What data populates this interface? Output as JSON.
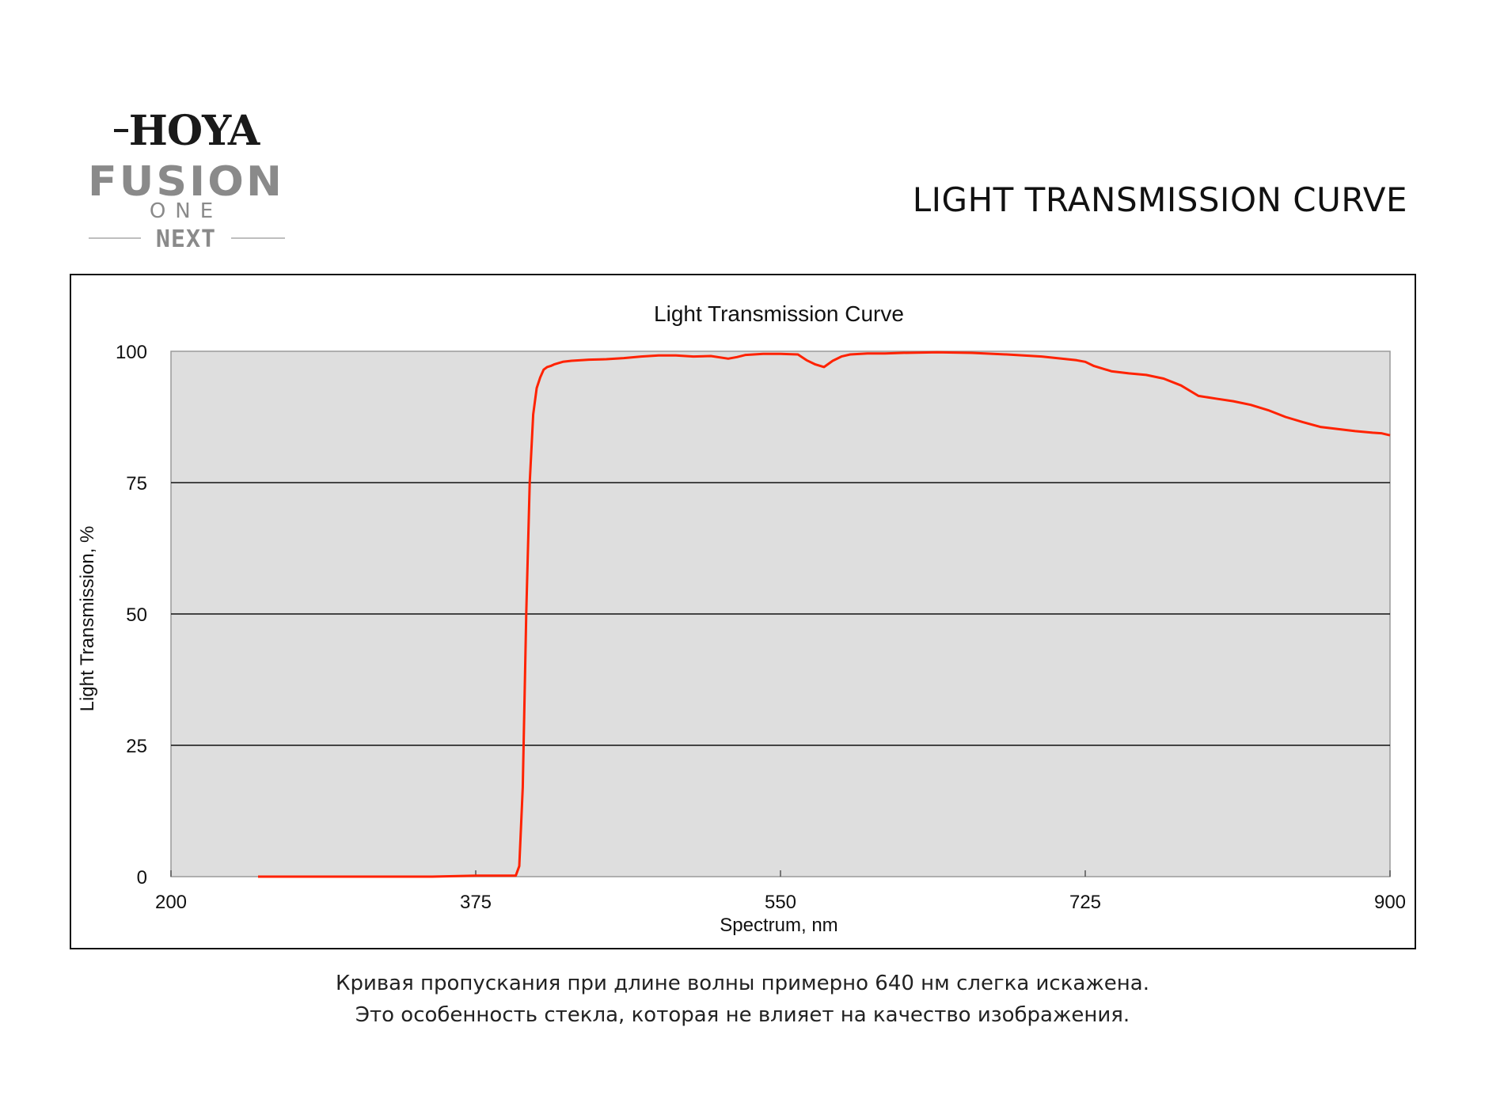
{
  "logo": {
    "brand": "HOYA",
    "product_line_1": "FUSION",
    "product_line_2": "ONE",
    "product_line_3": "NEXT"
  },
  "page_heading": "LIGHT TRANSMISSION CURVE",
  "chart_data": {
    "type": "line",
    "title": "Light Transmission Curve",
    "xlabel": "Spectrum, nm",
    "ylabel": "Light Transmission, %",
    "xlim": [
      200,
      900
    ],
    "ylim": [
      0,
      100
    ],
    "x_ticks": [
      200,
      375,
      550,
      725,
      900
    ],
    "y_ticks": [
      0,
      25,
      50,
      75,
      100
    ],
    "grid": "horizontal",
    "legend": "none",
    "plot_background": "#dedede",
    "series": [
      {
        "color": "#ff2200",
        "x": [
          250,
          300,
          350,
          375,
          398,
          400,
          402,
          404,
          406,
          408,
          410,
          412,
          414,
          416,
          418,
          420,
          425,
          430,
          440,
          450,
          460,
          470,
          480,
          490,
          500,
          510,
          520,
          525,
          530,
          540,
          550,
          560,
          565,
          570,
          575,
          580,
          585,
          590,
          600,
          610,
          620,
          640,
          660,
          680,
          700,
          720,
          725,
          730,
          740,
          750,
          760,
          770,
          780,
          790,
          800,
          810,
          820,
          830,
          840,
          850,
          860,
          870,
          880,
          890,
          895,
          900
        ],
        "y": [
          0,
          0,
          0,
          0.2,
          0.2,
          2,
          17,
          50,
          75,
          88,
          93,
          95,
          96.5,
          97,
          97.2,
          97.5,
          98,
          98.2,
          98.4,
          98.5,
          98.7,
          99,
          99.2,
          99.2,
          99,
          99.1,
          98.6,
          98.9,
          99.3,
          99.5,
          99.5,
          99.4,
          98.3,
          97.5,
          97,
          98.2,
          99,
          99.4,
          99.6,
          99.6,
          99.7,
          99.8,
          99.7,
          99.4,
          99,
          98.3,
          98,
          97.2,
          96.2,
          95.8,
          95.5,
          94.8,
          93.5,
          91.5,
          91,
          90.5,
          89.8,
          88.8,
          87.5,
          86.5,
          85.6,
          85.2,
          84.8,
          84.5,
          84.4,
          84
        ]
      }
    ]
  },
  "caption": {
    "line_1": "Кривая пропускания при длине волны примерно 640 нм слегка искажена.",
    "line_2": "Это особенность стекла, которая не влияет на качество изображения."
  }
}
